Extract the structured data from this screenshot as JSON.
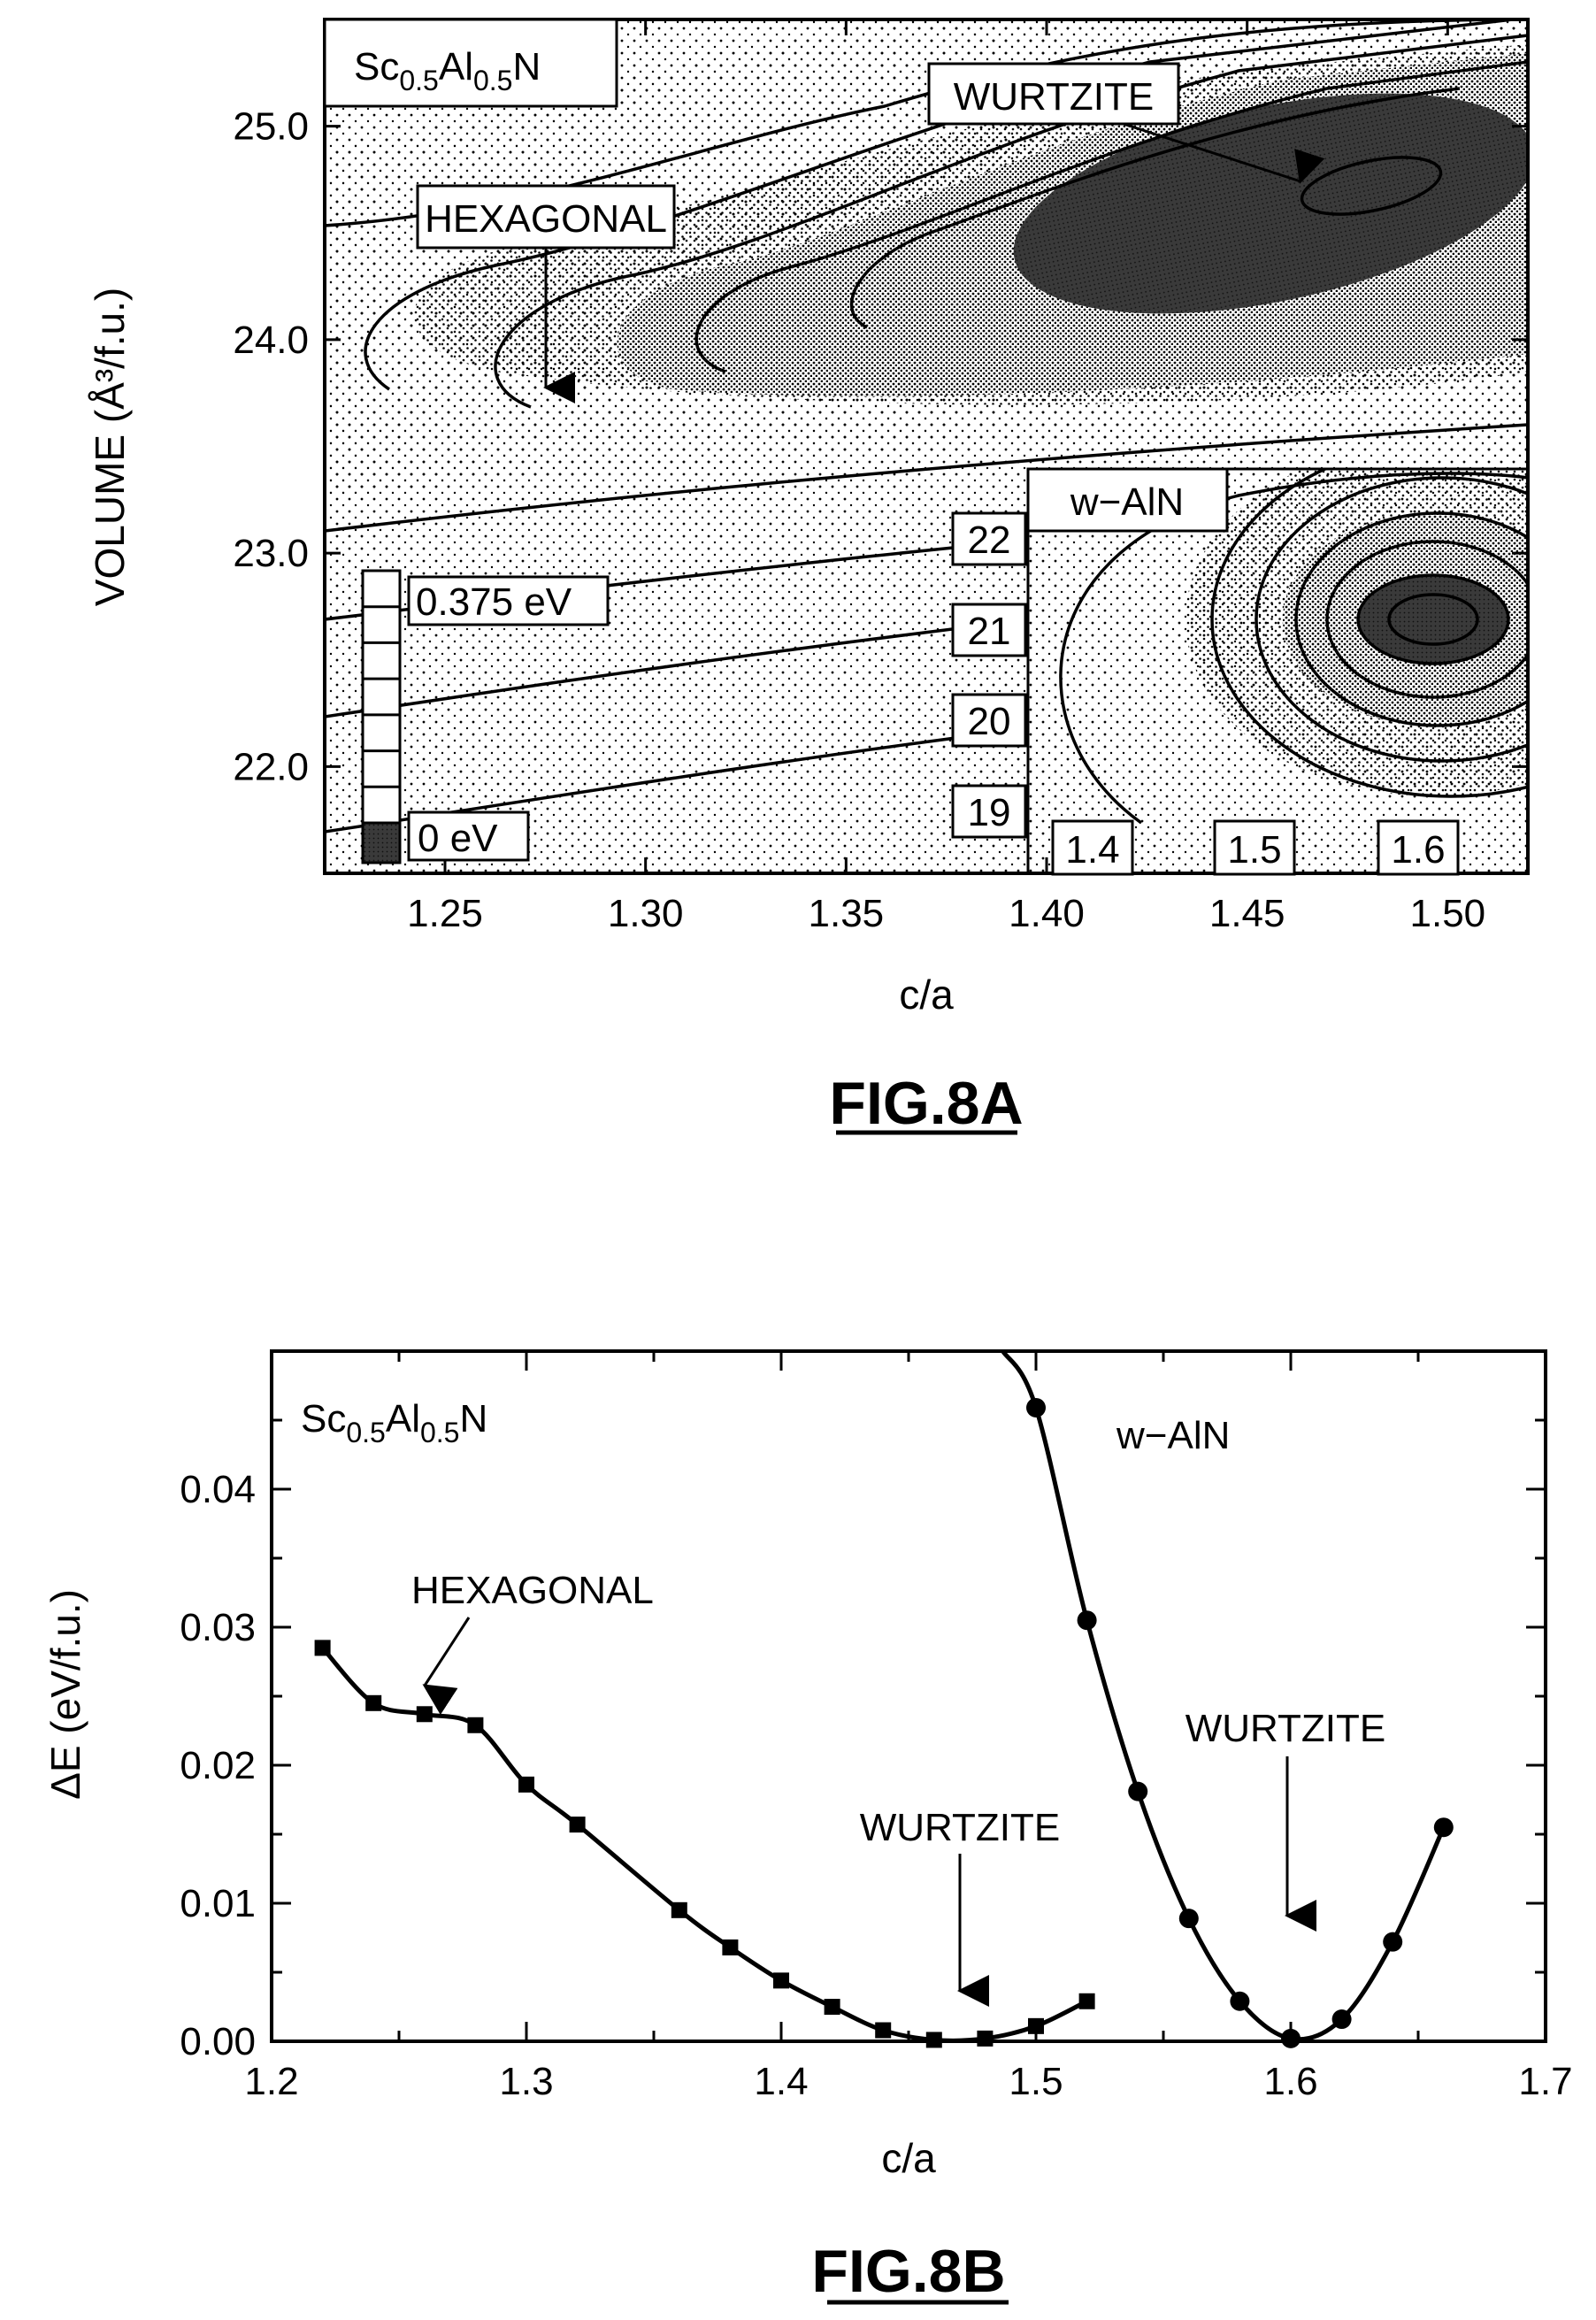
{
  "chart_data": [
    {
      "type": "heatmap",
      "figure_label": "FIG.8A",
      "xlabel": "c/a",
      "ylabel": "VOLUME (Å³/f.u.)",
      "xlim": [
        1.22,
        1.52
      ],
      "ylim": [
        21.5,
        25.5
      ],
      "x_ticks": [
        "1.25",
        "1.30",
        "1.35",
        "1.40",
        "1.45",
        "1.50"
      ],
      "y_ticks": [
        "22.0",
        "23.0",
        "24.0",
        "25.0"
      ],
      "compound": {
        "base": "Sc",
        "sub1": "0.5",
        "mid": "Al",
        "sub2": "0.5",
        "tail": "N"
      },
      "annotations": {
        "wurtzite": "WURTZITE",
        "hexagonal": "HEXAGONAL"
      },
      "colorbar": {
        "max_label": "0.375  eV",
        "min_label": "0 eV"
      },
      "inset": {
        "label": "w−AlN",
        "y_ticks": [
          "22",
          "21",
          "20",
          "19"
        ],
        "x_ticks": [
          "1.4",
          "1.5",
          "1.6"
        ],
        "minimum": {
          "c_over_a": 1.6,
          "volume": 21.0
        }
      },
      "minimum": {
        "c_over_a": 1.47,
        "volume": 24.7
      }
    },
    {
      "type": "line",
      "figure_label": "FIG.8B",
      "xlabel": "c/a",
      "ylabel": "ΔE  (eV/f.u.)",
      "xlim": [
        1.2,
        1.7
      ],
      "ylim": [
        0.0,
        0.05
      ],
      "x_ticks": [
        "1.2",
        "1.3",
        "1.4",
        "1.5",
        "1.6",
        "1.7"
      ],
      "y_ticks": [
        "0.00",
        "0.01",
        "0.02",
        "0.03",
        "0.04"
      ],
      "compound": {
        "base": "Sc",
        "sub1": "0.5",
        "mid": "Al",
        "sub2": "0.5",
        "tail": "N"
      },
      "annotations": {
        "hexagonal": "HEXAGONAL",
        "wurtzite_1": "WURTZITE",
        "wurtzite_2": "WURTZITE",
        "series_label": "w−AlN"
      },
      "series": [
        {
          "marker": "square",
          "x": [
            1.22,
            1.24,
            1.26,
            1.28,
            1.3,
            1.32,
            1.36,
            1.38,
            1.4,
            1.42,
            1.44,
            1.46,
            1.48,
            1.5,
            1.52
          ],
          "y": [
            0.0285,
            0.0245,
            0.0237,
            0.0229,
            0.0186,
            0.0157,
            0.0095,
            0.0068,
            0.0044,
            0.0025,
            0.0008,
            0.0001,
            0.0002,
            0.0011,
            0.0029
          ]
        },
        {
          "name": "w−AlN",
          "marker": "circle",
          "x": [
            1.5,
            1.52,
            1.54,
            1.56,
            1.58,
            1.6,
            1.62,
            1.64,
            1.66
          ],
          "y": [
            0.0459,
            0.0305,
            0.0181,
            0.0089,
            0.0029,
            0.0002,
            0.0016,
            0.0072,
            0.0155
          ]
        }
      ]
    }
  ]
}
